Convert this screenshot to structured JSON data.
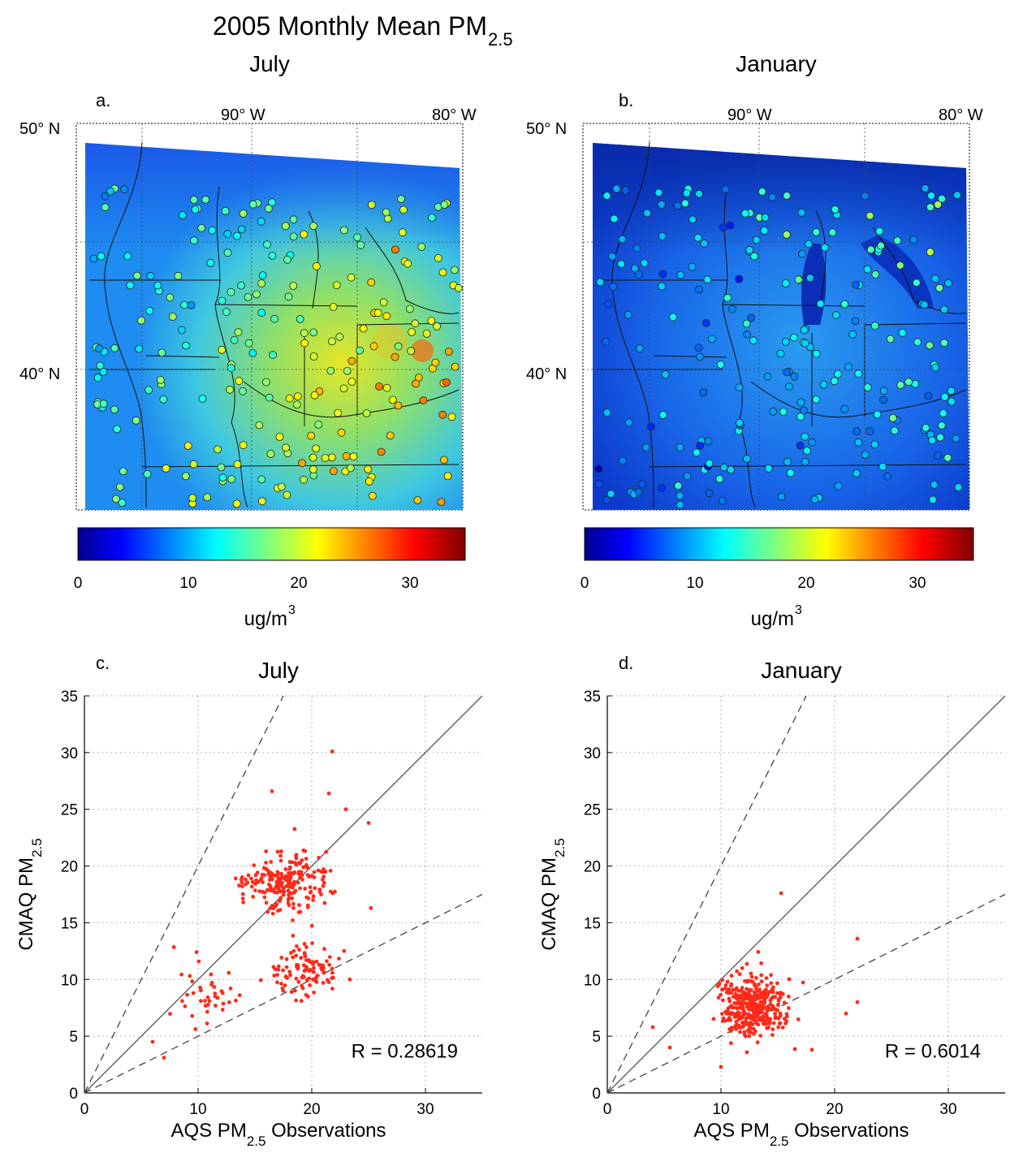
{
  "figure": {
    "title_main": "2005 Monthly Mean PM",
    "title_sub": "2.5"
  },
  "maps": [
    {
      "panel": "a.",
      "title": "July",
      "lat_labels": [
        "50° N",
        "40° N"
      ],
      "lon_labels": [
        "90° W",
        "80° W"
      ],
      "colorbar": {
        "ticks": [
          "0",
          "10",
          "20",
          "30"
        ],
        "range": [
          0,
          35
        ],
        "units_main": "ug/m",
        "units_sup": "3"
      }
    },
    {
      "panel": "b.",
      "title": "January",
      "lat_labels": [
        "50° N",
        "40° N"
      ],
      "lon_labels": [
        "90° W",
        "80° W"
      ],
      "colorbar": {
        "ticks": [
          "0",
          "10",
          "20",
          "30"
        ],
        "range": [
          0,
          35
        ],
        "units_main": "ug/m",
        "units_sup": "3"
      }
    }
  ],
  "colors": {
    "scatter_points": "#ff2a1a",
    "colormap": "jet",
    "grid": "#999999"
  },
  "chart_data": [
    {
      "type": "scatter",
      "panel": "c.",
      "title": "July",
      "xlabel": "AQS PM",
      "xlabel_sub": "2.5",
      "xlabel_tail": " Observations",
      "ylabel": "CMAQ PM",
      "ylabel_sub": "2.5",
      "xlim": [
        0,
        35
      ],
      "ylim": [
        0,
        35
      ],
      "xticks": [
        0,
        10,
        20,
        30
      ],
      "yticks": [
        0,
        5,
        10,
        15,
        20,
        25,
        30,
        35
      ],
      "grid": true,
      "reference_lines": [
        {
          "slope": 1,
          "style": "solid"
        },
        {
          "slope": 2,
          "style": "dashed"
        },
        {
          "slope": 0.5,
          "style": "dashed"
        }
      ],
      "annotation": "R = 0.28619",
      "n_points": 360,
      "point_clusters": [
        {
          "center": [
            17.5,
            18.6
          ],
          "spread": [
            3.2,
            2.3
          ],
          "count": 210
        },
        {
          "center": [
            19.5,
            10.9
          ],
          "spread": [
            2.6,
            2.2
          ],
          "count": 110
        },
        {
          "center": [
            10.5,
            8.5
          ],
          "spread": [
            2.8,
            3.0
          ],
          "count": 40
        }
      ],
      "extremes": [
        [
          21.8,
          30.1
        ],
        [
          21.5,
          26.4
        ],
        [
          16.5,
          26.6
        ],
        [
          7.0,
          3.1
        ],
        [
          6.0,
          4.5
        ],
        [
          23.0,
          25.0
        ],
        [
          25.0,
          23.8
        ],
        [
          25.2,
          16.3
        ]
      ]
    },
    {
      "type": "scatter",
      "panel": "d.",
      "title": "January",
      "xlabel": "AQS PM",
      "xlabel_sub": "2.5",
      "xlabel_tail": " Observations",
      "ylabel": "CMAQ PM",
      "ylabel_sub": "2.5",
      "xlim": [
        0,
        35
      ],
      "ylim": [
        0,
        35
      ],
      "xticks": [
        0,
        10,
        20,
        30
      ],
      "yticks": [
        0,
        5,
        10,
        15,
        20,
        25,
        30,
        35
      ],
      "grid": true,
      "reference_lines": [
        {
          "slope": 1,
          "style": "solid"
        },
        {
          "slope": 2,
          "style": "dashed"
        },
        {
          "slope": 0.5,
          "style": "dashed"
        }
      ],
      "annotation": "R = 0.6014",
      "n_points": 360,
      "point_clusters": [
        {
          "center": [
            12.8,
            7.6
          ],
          "spread": [
            2.4,
            2.4
          ],
          "count": 360
        }
      ],
      "extremes": [
        [
          15.3,
          17.6
        ],
        [
          4.0,
          5.8
        ],
        [
          5.5,
          4.0
        ],
        [
          22.0,
          13.6
        ],
        [
          22.0,
          8.0
        ],
        [
          18.0,
          3.8
        ],
        [
          10.0,
          2.3
        ],
        [
          21.0,
          7.0
        ]
      ]
    }
  ]
}
